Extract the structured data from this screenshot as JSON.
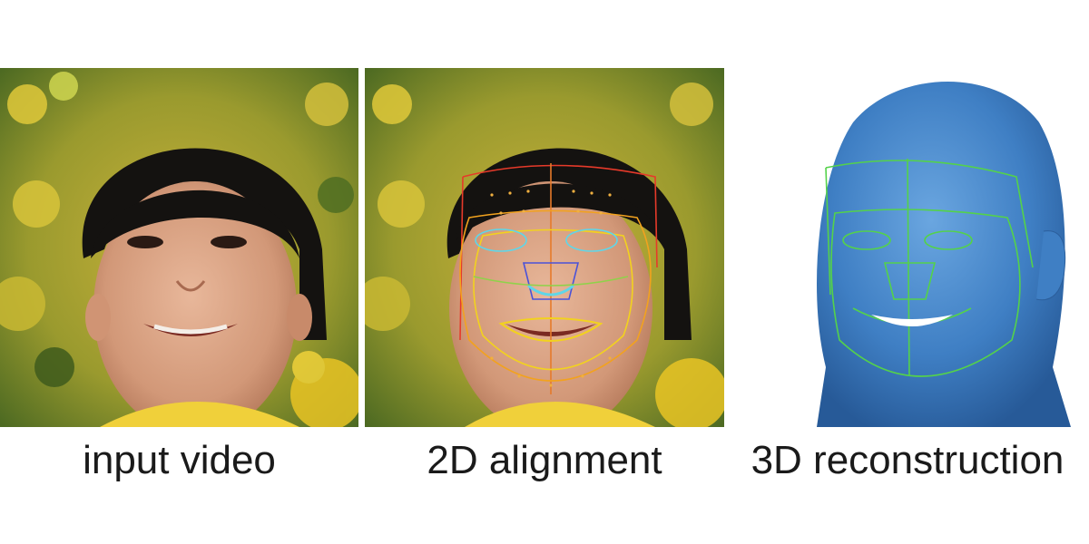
{
  "panels": [
    {
      "caption": "input video"
    },
    {
      "caption": "2D alignment"
    },
    {
      "caption": "3D reconstruction"
    }
  ],
  "colors": {
    "background": "#ffffff",
    "caption_text": "#1a1a1a",
    "mesh_blue": "#3f7fc4",
    "mesh_lines": "#54d24a",
    "landmark_red": "#e63a2a",
    "landmark_yellow": "#f2d21e",
    "landmark_cyan": "#5fd6e8",
    "landmark_blue": "#4a52d8"
  }
}
